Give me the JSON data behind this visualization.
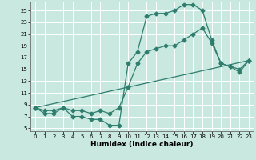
{
  "title": "",
  "xlabel": "Humidex (Indice chaleur)",
  "ylabel": "",
  "bg_color": "#c8e8e0",
  "grid_color": "#ffffff",
  "line_color": "#2e7d6e",
  "xlim": [
    -0.5,
    23.5
  ],
  "ylim": [
    4.5,
    26.5
  ],
  "yticks": [
    5,
    7,
    9,
    11,
    13,
    15,
    17,
    19,
    21,
    23,
    25
  ],
  "xticks": [
    0,
    1,
    2,
    3,
    4,
    5,
    6,
    7,
    8,
    9,
    10,
    11,
    12,
    13,
    14,
    15,
    16,
    17,
    18,
    19,
    20,
    21,
    22,
    23
  ],
  "line1_x": [
    0,
    1,
    2,
    3,
    4,
    5,
    6,
    7,
    8,
    9,
    10,
    11,
    12,
    13,
    14,
    15,
    16,
    17,
    18,
    19,
    20,
    21,
    22,
    23
  ],
  "line1_y": [
    8.5,
    7.5,
    7.5,
    8.5,
    7,
    7,
    6.5,
    6.5,
    5.5,
    5.5,
    16,
    18,
    24,
    24.5,
    24.5,
    25,
    26,
    26,
    25,
    20,
    16,
    15.5,
    15,
    16.5
  ],
  "line2_x": [
    0,
    1,
    2,
    3,
    4,
    5,
    6,
    7,
    8,
    9,
    10,
    11,
    12,
    13,
    14,
    15,
    16,
    17,
    18,
    19,
    20,
    21,
    22,
    23
  ],
  "line2_y": [
    8.5,
    8,
    8,
    8.5,
    8,
    8,
    7.5,
    8,
    7.5,
    8.5,
    12,
    16,
    18,
    18.5,
    19,
    19,
    20,
    21,
    22,
    19.5,
    16,
    15.5,
    14.5,
    16.5
  ],
  "line3_x": [
    0,
    23
  ],
  "line3_y": [
    8.5,
    16.5
  ]
}
